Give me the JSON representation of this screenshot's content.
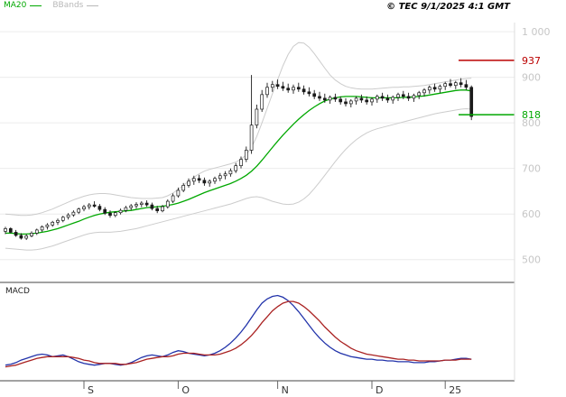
{
  "header": {
    "legend": [
      {
        "name": "MA20",
        "color": "#00a800"
      },
      {
        "name": "BBands",
        "color": "#b8b8b8"
      }
    ],
    "copyright": "© TEC 9/1/2025 4:1 GMT"
  },
  "macd_label": "MACD",
  "colors": {
    "candle": "#1a1a1a",
    "axis_text": "#c6c6c6",
    "grid": "#ececec",
    "separator": "#444444",
    "month_text": "#333333",
    "axis_border": "#dddddd"
  },
  "chart_data": [
    {
      "type": "candlestick",
      "title": "Price with MA20 and Bollinger Bands",
      "ylim": [
        450,
        1020
      ],
      "y_ticks": [
        {
          "value": 1000,
          "label": "1 000"
        },
        {
          "value": 900,
          "label": "900"
        },
        {
          "value": 800,
          "label": "800"
        },
        {
          "value": 700,
          "label": "700"
        },
        {
          "value": 600,
          "label": "600"
        },
        {
          "value": 500,
          "label": "500"
        }
      ],
      "levels": [
        {
          "value": 937,
          "label": "937",
          "color": "#bb0000",
          "name": "resistance"
        },
        {
          "value": 818,
          "label": "818",
          "color": "#00a800",
          "name": "support"
        }
      ],
      "x_ticks": [
        {
          "index": 15,
          "label": "S"
        },
        {
          "index": 33,
          "label": "O"
        },
        {
          "index": 52,
          "label": "N"
        },
        {
          "index": 70,
          "label": "D"
        },
        {
          "index": 84,
          "label": "25"
        }
      ],
      "candles": [
        [
          562,
          572,
          556,
          568
        ],
        [
          568,
          571,
          558,
          560
        ],
        [
          560,
          565,
          550,
          553
        ],
        [
          553,
          558,
          544,
          547
        ],
        [
          547,
          556,
          543,
          552
        ],
        [
          552,
          562,
          549,
          558
        ],
        [
          558,
          568,
          554,
          565
        ],
        [
          565,
          575,
          561,
          572
        ],
        [
          572,
          580,
          566,
          576
        ],
        [
          576,
          585,
          572,
          582
        ],
        [
          582,
          590,
          576,
          586
        ],
        [
          586,
          596,
          582,
          593
        ],
        [
          593,
          602,
          588,
          598
        ],
        [
          598,
          608,
          594,
          604
        ],
        [
          604,
          614,
          600,
          611
        ],
        [
          611,
          620,
          606,
          616
        ],
        [
          616,
          624,
          610,
          620
        ],
        [
          620,
          628,
          614,
          617
        ],
        [
          617,
          622,
          606,
          610
        ],
        [
          610,
          615,
          598,
          602
        ],
        [
          602,
          608,
          592,
          597
        ],
        [
          597,
          606,
          593,
          603
        ],
        [
          603,
          612,
          599,
          608
        ],
        [
          608,
          618,
          604,
          614
        ],
        [
          614,
          622,
          608,
          618
        ],
        [
          618,
          626,
          612,
          621
        ],
        [
          621,
          628,
          615,
          624
        ],
        [
          624,
          630,
          616,
          620
        ],
        [
          620,
          625,
          608,
          612
        ],
        [
          612,
          618,
          602,
          607
        ],
        [
          607,
          620,
          604,
          616
        ],
        [
          616,
          632,
          612,
          628
        ],
        [
          628,
          645,
          624,
          640
        ],
        [
          640,
          658,
          636,
          652
        ],
        [
          652,
          668,
          648,
          663
        ],
        [
          663,
          678,
          658,
          672
        ],
        [
          672,
          684,
          664,
          678
        ],
        [
          678,
          686,
          668,
          674
        ],
        [
          674,
          680,
          662,
          668
        ],
        [
          668,
          676,
          660,
          672
        ],
        [
          672,
          682,
          666,
          678
        ],
        [
          678,
          690,
          672,
          684
        ],
        [
          684,
          694,
          676,
          688
        ],
        [
          688,
          700,
          682,
          695
        ],
        [
          695,
          712,
          690,
          706
        ],
        [
          706,
          726,
          700,
          720
        ],
        [
          720,
          748,
          714,
          740
        ],
        [
          740,
          905,
          732,
          795
        ],
        [
          795,
          840,
          788,
          830
        ],
        [
          830,
          872,
          824,
          862
        ],
        [
          862,
          888,
          855,
          878
        ],
        [
          878,
          892,
          868,
          884
        ],
        [
          884,
          895,
          874,
          880
        ],
        [
          880,
          890,
          870,
          876
        ],
        [
          876,
          886,
          866,
          872
        ],
        [
          872,
          884,
          864,
          878
        ],
        [
          878,
          888,
          868,
          874
        ],
        [
          874,
          882,
          862,
          868
        ],
        [
          868,
          878,
          858,
          864
        ],
        [
          864,
          872,
          852,
          858
        ],
        [
          858,
          868,
          848,
          854
        ],
        [
          854,
          864,
          844,
          850
        ],
        [
          850,
          860,
          842,
          856
        ],
        [
          856,
          864,
          846,
          852
        ],
        [
          852,
          858,
          840,
          846
        ],
        [
          846,
          854,
          836,
          842
        ],
        [
          842,
          852,
          834,
          848
        ],
        [
          848,
          858,
          840,
          854
        ],
        [
          854,
          862,
          844,
          850
        ],
        [
          850,
          858,
          840,
          846
        ],
        [
          846,
          856,
          838,
          852
        ],
        [
          852,
          862,
          844,
          858
        ],
        [
          858,
          866,
          848,
          854
        ],
        [
          854,
          862,
          844,
          850
        ],
        [
          850,
          860,
          842,
          856
        ],
        [
          856,
          866,
          848,
          862
        ],
        [
          862,
          870,
          852,
          858
        ],
        [
          858,
          866,
          848,
          854
        ],
        [
          854,
          864,
          846,
          860
        ],
        [
          860,
          870,
          852,
          866
        ],
        [
          866,
          876,
          858,
          872
        ],
        [
          872,
          882,
          864,
          878
        ],
        [
          878,
          886,
          868,
          874
        ],
        [
          874,
          884,
          866,
          880
        ],
        [
          880,
          890,
          872,
          886
        ],
        [
          886,
          896,
          878,
          882
        ],
        [
          882,
          892,
          874,
          888
        ],
        [
          888,
          898,
          878,
          884
        ],
        [
          884,
          894,
          872,
          878
        ],
        [
          878,
          882,
          806,
          814
        ]
      ],
      "overlays": [
        {
          "name": "MA20",
          "color": "#00a800",
          "values": [
            558,
            558,
            557,
            556,
            556,
            557,
            558,
            560,
            562,
            565,
            568,
            572,
            576,
            580,
            584,
            589,
            593,
            597,
            600,
            602,
            604,
            605,
            606,
            607,
            608,
            610,
            612,
            614,
            615,
            616,
            617,
            619,
            621,
            624,
            628,
            632,
            637,
            642,
            647,
            651,
            655,
            659,
            663,
            667,
            672,
            678,
            685,
            694,
            705,
            718,
            732,
            746,
            760,
            773,
            785,
            797,
            808,
            818,
            827,
            835,
            842,
            848,
            852,
            855,
            857,
            858,
            858,
            858,
            857,
            856,
            855,
            855,
            855,
            855,
            855,
            855,
            856,
            856,
            857,
            858,
            859,
            861,
            863,
            865,
            867,
            869,
            871,
            872,
            872,
            870
          ]
        },
        {
          "name": "BB_upper",
          "color": "#cccccc",
          "values": [
            600,
            599,
            598,
            597,
            597,
            598,
            600,
            603,
            607,
            611,
            616,
            621,
            626,
            631,
            635,
            639,
            642,
            644,
            645,
            645,
            644,
            642,
            640,
            638,
            636,
            635,
            634,
            634,
            634,
            635,
            636,
            640,
            646,
            654,
            663,
            672,
            681,
            688,
            694,
            698,
            701,
            704,
            707,
            710,
            714,
            720,
            730,
            746,
            770,
            800,
            832,
            864,
            895,
            925,
            950,
            968,
            976,
            975,
            966,
            952,
            936,
            920,
            905,
            894,
            886,
            880,
            877,
            875,
            874,
            874,
            874,
            875,
            876,
            877,
            878,
            878,
            879,
            879,
            880,
            881,
            882,
            884,
            886,
            888,
            890,
            892,
            894,
            896,
            897,
            898
          ]
        },
        {
          "name": "BB_lower",
          "color": "#cccccc",
          "values": [
            525,
            524,
            523,
            522,
            521,
            521,
            522,
            524,
            527,
            530,
            534,
            538,
            542,
            546,
            550,
            554,
            557,
            559,
            560,
            560,
            560,
            561,
            562,
            564,
            566,
            568,
            571,
            574,
            577,
            580,
            583,
            586,
            589,
            592,
            595,
            598,
            601,
            604,
            607,
            610,
            613,
            616,
            619,
            622,
            626,
            630,
            634,
            637,
            638,
            636,
            632,
            628,
            625,
            622,
            621,
            622,
            626,
            633,
            643,
            656,
            670,
            685,
            700,
            715,
            729,
            742,
            753,
            763,
            771,
            778,
            783,
            787,
            790,
            793,
            796,
            799,
            802,
            805,
            808,
            811,
            814,
            817,
            820,
            822,
            824,
            826,
            828,
            830,
            831,
            830
          ]
        }
      ]
    },
    {
      "type": "line",
      "title": "MACD",
      "ylim": [
        -10,
        92
      ],
      "series": [
        {
          "name": "MACD",
          "color": "#2233aa",
          "values": [
            2,
            3,
            5,
            8,
            10,
            12,
            14,
            15,
            14,
            12,
            13,
            14,
            12,
            9,
            6,
            4,
            3,
            2,
            3,
            4,
            4,
            3,
            2,
            3,
            5,
            8,
            11,
            13,
            14,
            13,
            12,
            14,
            17,
            19,
            18,
            16,
            15,
            14,
            13,
            14,
            16,
            19,
            23,
            28,
            34,
            41,
            49,
            58,
            67,
            75,
            80,
            83,
            84,
            82,
            78,
            72,
            65,
            57,
            49,
            41,
            34,
            28,
            23,
            19,
            16,
            14,
            12,
            11,
            10,
            9,
            9,
            8,
            8,
            7,
            7,
            6,
            6,
            6,
            5,
            5,
            5,
            6,
            6,
            7,
            8,
            8,
            9,
            10,
            10,
            9
          ]
        },
        {
          "name": "Signal",
          "color": "#aa2222",
          "values": [
            0,
            1,
            2,
            4,
            6,
            8,
            10,
            11,
            12,
            12,
            12,
            12,
            12,
            11,
            10,
            8,
            7,
            5,
            4,
            4,
            4,
            4,
            3,
            3,
            4,
            5,
            7,
            9,
            10,
            11,
            12,
            12,
            13,
            15,
            16,
            16,
            16,
            15,
            14,
            14,
            14,
            15,
            17,
            19,
            22,
            26,
            31,
            37,
            44,
            52,
            59,
            66,
            71,
            75,
            77,
            77,
            75,
            71,
            66,
            60,
            54,
            47,
            41,
            35,
            30,
            26,
            22,
            19,
            17,
            15,
            14,
            13,
            12,
            11,
            10,
            9,
            9,
            8,
            8,
            7,
            7,
            7,
            7,
            7,
            8,
            8,
            8,
            9,
            9,
            9
          ]
        }
      ]
    }
  ]
}
